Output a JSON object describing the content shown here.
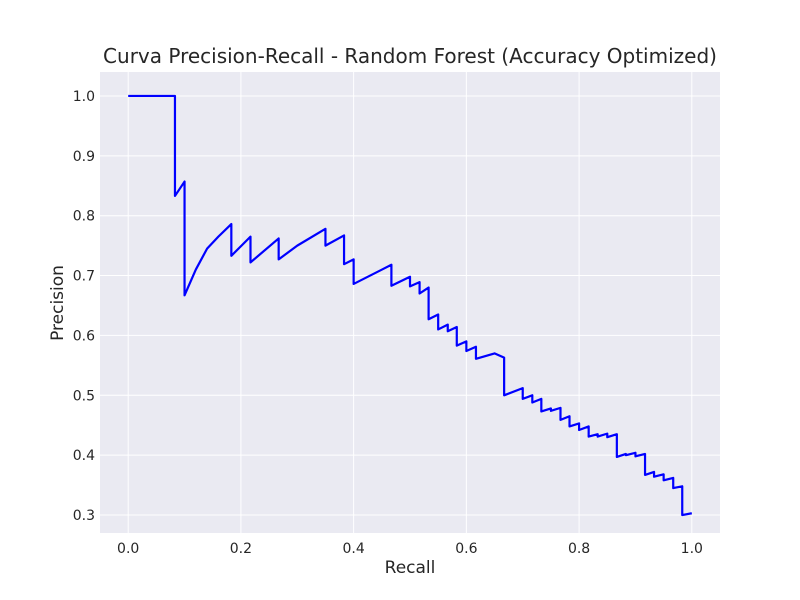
{
  "chart_data": {
    "type": "line",
    "title": "Curva Precision-Recall - Random Forest (Accuracy Optimized)",
    "xlabel": "Recall",
    "ylabel": "Precision",
    "xlim": [
      -0.05,
      1.05
    ],
    "ylim": [
      0.27,
      1.04
    ],
    "grid": true,
    "legend": "none",
    "xticks": [
      "0.0",
      "0.2",
      "0.4",
      "0.6",
      "0.8",
      "1.0"
    ],
    "xtick_values": [
      0.0,
      0.2,
      0.4,
      0.6,
      0.8,
      1.0
    ],
    "yticks": [
      "0.3",
      "0.4",
      "0.5",
      "0.6",
      "0.7",
      "0.8",
      "0.9",
      "1.0"
    ],
    "ytick_values": [
      0.3,
      0.4,
      0.5,
      0.6,
      0.7,
      0.8,
      0.9,
      1.0
    ],
    "colors": {
      "line": "#0000ff",
      "plot_background": "#eaeaf2",
      "grid": "#ffffff"
    },
    "series": [
      {
        "x": [
          0.0,
          0.083,
          0.083,
          0.1,
          0.1,
          0.12,
          0.14,
          0.16,
          0.183,
          0.183,
          0.217,
          0.217,
          0.267,
          0.267,
          0.3,
          0.35,
          0.35,
          0.383,
          0.383,
          0.4,
          0.4,
          0.467,
          0.467,
          0.5,
          0.5,
          0.517,
          0.517,
          0.533,
          0.533,
          0.55,
          0.55,
          0.567,
          0.567,
          0.583,
          0.583,
          0.6,
          0.6,
          0.617,
          0.617,
          0.65,
          0.667,
          0.667,
          0.7,
          0.7,
          0.717,
          0.717,
          0.733,
          0.733,
          0.75,
          0.75,
          0.767,
          0.767,
          0.783,
          0.783,
          0.8,
          0.8,
          0.817,
          0.817,
          0.833,
          0.833,
          0.85,
          0.85,
          0.867,
          0.867,
          0.883,
          0.883,
          0.9,
          0.9,
          0.917,
          0.917,
          0.933,
          0.933,
          0.95,
          0.95,
          0.967,
          0.967,
          0.983,
          0.983,
          1.0
        ],
        "y": [
          1.0,
          1.0,
          0.833,
          0.857,
          0.667,
          0.71,
          0.745,
          0.765,
          0.786,
          0.733,
          0.765,
          0.722,
          0.762,
          0.727,
          0.75,
          0.778,
          0.75,
          0.767,
          0.719,
          0.727,
          0.686,
          0.718,
          0.683,
          0.698,
          0.682,
          0.689,
          0.67,
          0.68,
          0.627,
          0.635,
          0.61,
          0.618,
          0.607,
          0.614,
          0.583,
          0.59,
          0.574,
          0.581,
          0.561,
          0.57,
          0.563,
          0.5,
          0.512,
          0.494,
          0.5,
          0.488,
          0.494,
          0.473,
          0.478,
          0.474,
          0.479,
          0.459,
          0.465,
          0.448,
          0.453,
          0.442,
          0.448,
          0.431,
          0.435,
          0.431,
          0.436,
          0.43,
          0.435,
          0.397,
          0.402,
          0.4,
          0.404,
          0.398,
          0.402,
          0.367,
          0.372,
          0.364,
          0.368,
          0.358,
          0.362,
          0.345,
          0.348,
          0.3,
          0.303
        ]
      }
    ]
  }
}
